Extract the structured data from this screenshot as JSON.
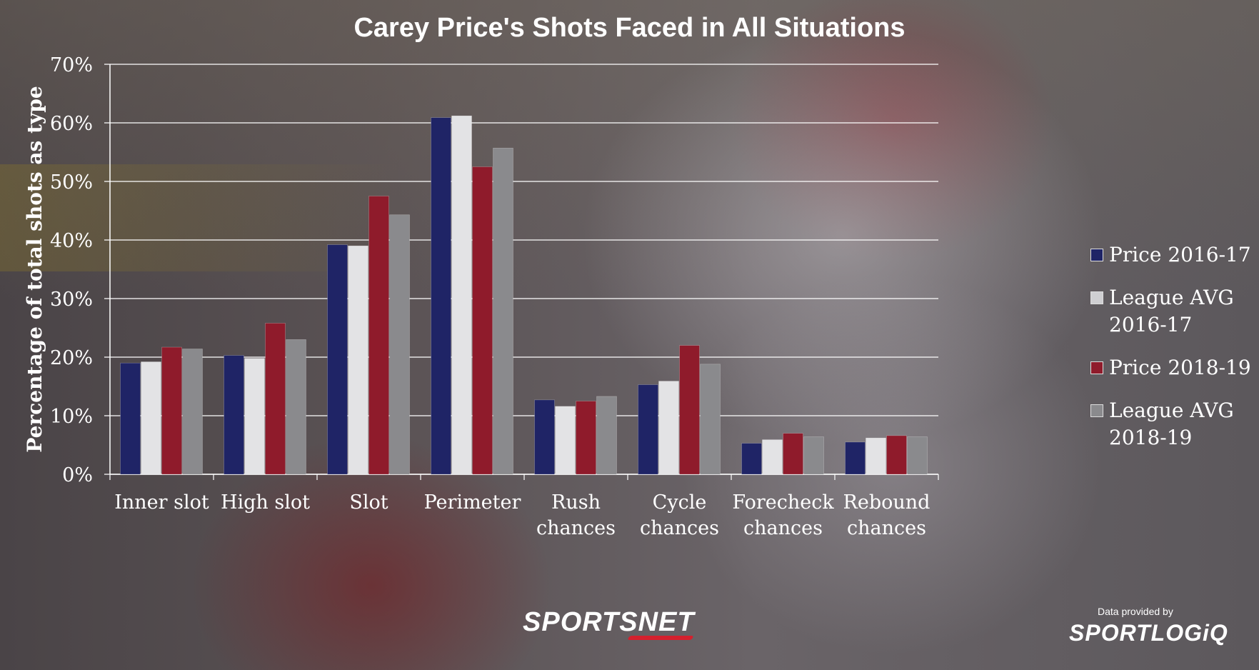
{
  "chart_data": {
    "type": "bar",
    "title": "Carey Price's Shots Faced in All Situations",
    "xlabel": "",
    "ylabel": "Percentage of total shots as type",
    "ylim": [
      0,
      70
    ],
    "yticks": [
      "0%",
      "10%",
      "20%",
      "30%",
      "40%",
      "50%",
      "60%",
      "70%"
    ],
    "grid": true,
    "legend_position": "right",
    "categories": [
      [
        "Inner slot"
      ],
      [
        "High slot"
      ],
      [
        "Slot"
      ],
      [
        "Perimeter"
      ],
      [
        "Rush",
        "chances"
      ],
      [
        "Cycle",
        "chances"
      ],
      [
        "Forecheck",
        "chances"
      ],
      [
        "Rebound",
        "chances"
      ]
    ],
    "series": [
      {
        "name": "Price 2016-17",
        "color": "#1f2466",
        "values": [
          19.0,
          20.3,
          39.2,
          60.9,
          12.7,
          15.3,
          5.3,
          5.5
        ]
      },
      {
        "name": "League AVG 2016-17",
        "color": "#e3e3e5",
        "values": [
          19.2,
          19.8,
          39.0,
          61.2,
          11.6,
          15.9,
          5.9,
          6.2
        ]
      },
      {
        "name": "Price 2018-19",
        "color": "#8f1b2b",
        "values": [
          21.7,
          25.8,
          47.5,
          52.5,
          12.5,
          22.0,
          7.0,
          6.6
        ]
      },
      {
        "name": "League AVG 2018-19",
        "color": "#8a8a8d",
        "values": [
          21.4,
          23.0,
          44.3,
          55.7,
          13.3,
          18.8,
          6.4,
          6.4
        ]
      }
    ]
  },
  "legend": {
    "items": [
      {
        "lines": [
          "Price 2016-17"
        ],
        "color": "#1f2466"
      },
      {
        "lines": [
          "League AVG",
          "2016-17"
        ],
        "color": "#cfcfd2"
      },
      {
        "lines": [
          "Price 2018-19"
        ],
        "color": "#8f1b2b"
      },
      {
        "lines": [
          "League AVG",
          "2018-19"
        ],
        "color": "#8a8a8d"
      }
    ]
  },
  "branding": {
    "publisher": "SPORTSNET",
    "credit_label": "Data provided by",
    "credit_source": "SPORTLOGiQ"
  }
}
